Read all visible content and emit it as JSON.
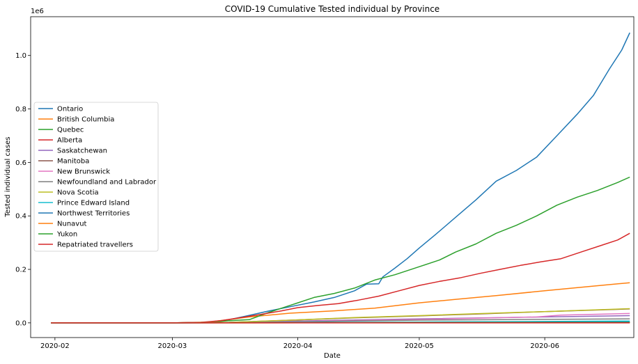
{
  "chart_data": {
    "type": "line",
    "title": "COVID-19 Cumulative Tested individual by Province",
    "xlabel": "Date",
    "ylabel": "Tested individual cases",
    "y_offset_label": "1e6",
    "xlim": [
      "2020-01-26",
      "2020-06-23"
    ],
    "ylim": [
      -55000,
      1145000
    ],
    "x_ticks": [
      {
        "value": "2020-02-01",
        "label": "2020-02"
      },
      {
        "value": "2020-03-01",
        "label": "2020-03"
      },
      {
        "value": "2020-04-01",
        "label": "2020-04"
      },
      {
        "value": "2020-05-01",
        "label": "2020-05"
      },
      {
        "value": "2020-06-01",
        "label": "2020-06"
      }
    ],
    "y_ticks": [
      {
        "value": 0,
        "label": "0.0"
      },
      {
        "value": 200000,
        "label": "0.2"
      },
      {
        "value": 400000,
        "label": "0.4"
      },
      {
        "value": 600000,
        "label": "0.6"
      },
      {
        "value": 800000,
        "label": "0.8"
      },
      {
        "value": 1000000,
        "label": "1.0"
      }
    ],
    "grid": false,
    "legend_position": "center-left",
    "series": [
      {
        "name": "Ontario",
        "color": "#1f77b4",
        "points": [
          [
            "2020-01-31",
            0
          ],
          [
            "2020-03-01",
            0
          ],
          [
            "2020-03-10",
            2000
          ],
          [
            "2020-03-15",
            12000
          ],
          [
            "2020-03-20",
            28000
          ],
          [
            "2020-03-25",
            45000
          ],
          [
            "2020-03-30",
            60000
          ],
          [
            "2020-04-05",
            78000
          ],
          [
            "2020-04-10",
            95000
          ],
          [
            "2020-04-15",
            120000
          ],
          [
            "2020-04-18",
            145000
          ],
          [
            "2020-04-21",
            146000
          ],
          [
            "2020-04-22",
            172000
          ],
          [
            "2020-04-25",
            205000
          ],
          [
            "2020-04-28",
            240000
          ],
          [
            "2020-05-01",
            280000
          ],
          [
            "2020-05-05",
            330000
          ],
          [
            "2020-05-10",
            395000
          ],
          [
            "2020-05-15",
            460000
          ],
          [
            "2020-05-20",
            530000
          ],
          [
            "2020-05-25",
            570000
          ],
          [
            "2020-05-30",
            620000
          ],
          [
            "2020-06-04",
            700000
          ],
          [
            "2020-06-09",
            780000
          ],
          [
            "2020-06-13",
            850000
          ],
          [
            "2020-06-17",
            950000
          ],
          [
            "2020-06-20",
            1020000
          ],
          [
            "2020-06-22",
            1085000
          ]
        ]
      },
      {
        "name": "British Columbia",
        "color": "#ff7f0e",
        "points": [
          [
            "2020-01-31",
            0
          ],
          [
            "2020-03-01",
            0
          ],
          [
            "2020-03-10",
            3000
          ],
          [
            "2020-03-20",
            22000
          ],
          [
            "2020-03-30",
            36000
          ],
          [
            "2020-04-10",
            45000
          ],
          [
            "2020-04-20",
            55000
          ],
          [
            "2020-05-01",
            75000
          ],
          [
            "2020-05-10",
            88000
          ],
          [
            "2020-05-20",
            102000
          ],
          [
            "2020-06-01",
            120000
          ],
          [
            "2020-06-10",
            133000
          ],
          [
            "2020-06-22",
            150000
          ]
        ]
      },
      {
        "name": "Quebec",
        "color": "#2ca02c",
        "points": [
          [
            "2020-01-31",
            0
          ],
          [
            "2020-03-01",
            0
          ],
          [
            "2020-03-10",
            2000
          ],
          [
            "2020-03-15",
            8000
          ],
          [
            "2020-03-20",
            12000
          ],
          [
            "2020-03-25",
            40000
          ],
          [
            "2020-03-30",
            65000
          ],
          [
            "2020-04-01",
            75000
          ],
          [
            "2020-04-05",
            95000
          ],
          [
            "2020-04-10",
            110000
          ],
          [
            "2020-04-15",
            130000
          ],
          [
            "2020-04-20",
            160000
          ],
          [
            "2020-04-25",
            180000
          ],
          [
            "2020-05-01",
            210000
          ],
          [
            "2020-05-06",
            235000
          ],
          [
            "2020-05-10",
            265000
          ],
          [
            "2020-05-15",
            295000
          ],
          [
            "2020-05-20",
            335000
          ],
          [
            "2020-05-25",
            365000
          ],
          [
            "2020-05-30",
            400000
          ],
          [
            "2020-06-04",
            440000
          ],
          [
            "2020-06-09",
            470000
          ],
          [
            "2020-06-14",
            495000
          ],
          [
            "2020-06-19",
            525000
          ],
          [
            "2020-06-22",
            545000
          ]
        ]
      },
      {
        "name": "Alberta",
        "color": "#d62728",
        "points": [
          [
            "2020-01-31",
            0
          ],
          [
            "2020-03-01",
            0
          ],
          [
            "2020-03-08",
            2000
          ],
          [
            "2020-03-13",
            8000
          ],
          [
            "2020-03-18",
            20000
          ],
          [
            "2020-03-23",
            32000
          ],
          [
            "2020-03-28",
            45000
          ],
          [
            "2020-04-01",
            57000
          ],
          [
            "2020-04-06",
            65000
          ],
          [
            "2020-04-11",
            72000
          ],
          [
            "2020-04-16",
            85000
          ],
          [
            "2020-04-21",
            100000
          ],
          [
            "2020-04-26",
            120000
          ],
          [
            "2020-05-01",
            140000
          ],
          [
            "2020-05-06",
            155000
          ],
          [
            "2020-05-11",
            168000
          ],
          [
            "2020-05-16",
            185000
          ],
          [
            "2020-05-21",
            200000
          ],
          [
            "2020-05-26",
            215000
          ],
          [
            "2020-05-31",
            228000
          ],
          [
            "2020-06-05",
            240000
          ],
          [
            "2020-06-10",
            265000
          ],
          [
            "2020-06-15",
            290000
          ],
          [
            "2020-06-19",
            310000
          ],
          [
            "2020-06-22",
            335000
          ]
        ]
      },
      {
        "name": "Saskatchewan",
        "color": "#9467bd",
        "points": [
          [
            "2020-01-31",
            0
          ],
          [
            "2020-03-01",
            0
          ],
          [
            "2020-03-15",
            1000
          ],
          [
            "2020-04-01",
            7000
          ],
          [
            "2020-05-01",
            15000
          ],
          [
            "2020-06-01",
            22000
          ],
          [
            "2020-06-22",
            27000
          ]
        ]
      },
      {
        "name": "Manitoba",
        "color": "#8c564b",
        "points": [
          [
            "2020-01-31",
            0
          ],
          [
            "2020-03-01",
            0
          ],
          [
            "2020-03-15",
            2000
          ],
          [
            "2020-04-01",
            11000
          ],
          [
            "2020-04-15",
            19000
          ],
          [
            "2020-05-01",
            26000
          ],
          [
            "2020-05-15",
            33000
          ],
          [
            "2020-06-01",
            42000
          ],
          [
            "2020-06-22",
            52000
          ]
        ]
      },
      {
        "name": "New Brunswick",
        "color": "#e377c2",
        "points": [
          [
            "2020-01-31",
            0
          ],
          [
            "2020-03-01",
            0
          ],
          [
            "2020-03-15",
            1000
          ],
          [
            "2020-04-01",
            5000
          ],
          [
            "2020-05-01",
            13000
          ],
          [
            "2020-05-30",
            22000
          ],
          [
            "2020-06-05",
            29000
          ],
          [
            "2020-06-22",
            35000
          ]
        ]
      },
      {
        "name": "Newfoundland and Labrador",
        "color": "#7f7f7f",
        "points": [
          [
            "2020-01-31",
            0
          ],
          [
            "2020-03-01",
            0
          ],
          [
            "2020-03-15",
            500
          ],
          [
            "2020-04-01",
            4000
          ],
          [
            "2020-05-01",
            10000
          ],
          [
            "2020-06-01",
            13000
          ],
          [
            "2020-06-22",
            15000
          ]
        ]
      },
      {
        "name": "Nova Scotia",
        "color": "#bcbd22",
        "points": [
          [
            "2020-01-31",
            0
          ],
          [
            "2020-03-01",
            0
          ],
          [
            "2020-03-15",
            1500
          ],
          [
            "2020-04-01",
            11000
          ],
          [
            "2020-04-15",
            20000
          ],
          [
            "2020-05-01",
            27000
          ],
          [
            "2020-05-15",
            34000
          ],
          [
            "2020-06-01",
            42000
          ],
          [
            "2020-06-22",
            53000
          ]
        ]
      },
      {
        "name": "Prince Edward Island",
        "color": "#17becf",
        "points": [
          [
            "2020-01-31",
            0
          ],
          [
            "2020-03-01",
            0
          ],
          [
            "2020-04-01",
            1000
          ],
          [
            "2020-05-01",
            3000
          ],
          [
            "2020-06-01",
            5000
          ],
          [
            "2020-06-22",
            7000
          ]
        ]
      },
      {
        "name": "Northwest Territories",
        "color": "#1f77b4",
        "points": [
          [
            "2020-01-31",
            0
          ],
          [
            "2020-03-01",
            0
          ],
          [
            "2020-04-01",
            800
          ],
          [
            "2020-05-01",
            1500
          ],
          [
            "2020-06-01",
            2500
          ],
          [
            "2020-06-22",
            3000
          ]
        ]
      },
      {
        "name": "Nunavut",
        "color": "#ff7f0e",
        "points": [
          [
            "2020-01-31",
            0
          ],
          [
            "2020-03-01",
            0
          ],
          [
            "2020-04-01",
            300
          ],
          [
            "2020-05-01",
            700
          ],
          [
            "2020-06-22",
            1200
          ]
        ]
      },
      {
        "name": "Yukon",
        "color": "#2ca02c",
        "points": [
          [
            "2020-01-31",
            0
          ],
          [
            "2020-03-01",
            0
          ],
          [
            "2020-04-01",
            500
          ],
          [
            "2020-05-01",
            1000
          ],
          [
            "2020-06-22",
            1600
          ]
        ]
      },
      {
        "name": "Repatriated travellers",
        "color": "#d62728",
        "points": [
          [
            "2020-01-31",
            0
          ],
          [
            "2020-03-01",
            0
          ],
          [
            "2020-04-01",
            0
          ],
          [
            "2020-06-22",
            0
          ]
        ]
      }
    ]
  }
}
